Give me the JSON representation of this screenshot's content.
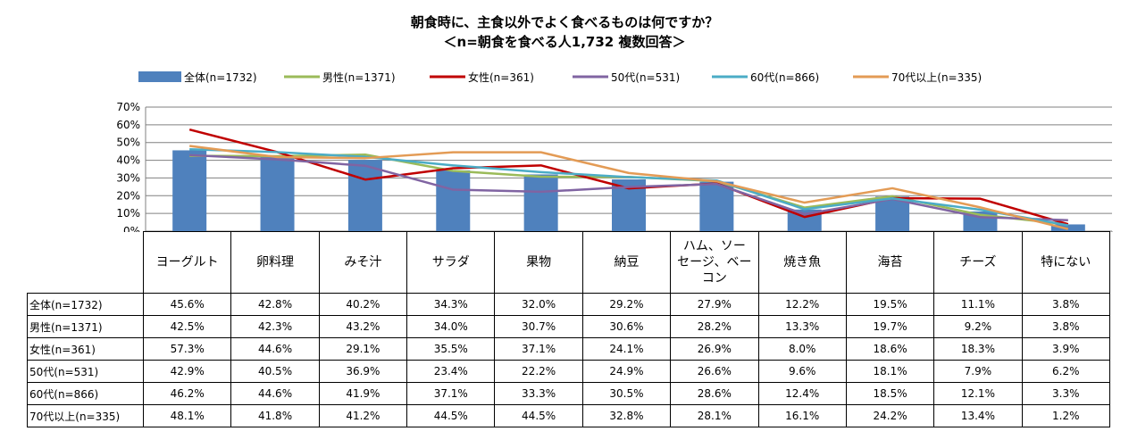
{
  "title": "朝食時に、主食以外でよく食べるものは何ですか？",
  "subtitle": "＜n=朝食を食べる人1,732  複数回答＞",
  "colors": {
    "全体": "#4F81BD",
    "男性": "#9BBB59",
    "女性": "#C00000",
    "50代": "#8064A2",
    "60代": "#4BACC6",
    "70代以上": "#E39B55",
    "grid": "#808080"
  },
  "chart_data": {
    "type": "bar+line",
    "categories": [
      "ヨーグルト",
      "卵料理",
      "みそ汁",
      "サラダ",
      "果物",
      "納豆",
      "ハム、ソーセージ、ベーコン",
      "焼き魚",
      "海苔",
      "チーズ",
      "特にない"
    ],
    "category_labels": [
      "ヨーグルト",
      "卵料理",
      "みそ汁",
      "サラダ",
      "果物",
      "納豆",
      "ハム、ソー\nセージ、ベー\nコン",
      "焼き魚",
      "海苔",
      "チーズ",
      "特にない"
    ],
    "ylim": [
      0,
      70
    ],
    "yticks": [
      "0%",
      "10%",
      "20%",
      "30%",
      "40%",
      "50%",
      "60%",
      "70%"
    ],
    "grid": true,
    "legend_position": "top",
    "series": [
      {
        "key": "全体",
        "name": "全体(n=1732)",
        "kind": "bar",
        "values": [
          45.6,
          42.8,
          40.2,
          34.3,
          32.0,
          29.2,
          27.9,
          12.2,
          19.5,
          11.1,
          3.8
        ],
        "labels": [
          "45.6%",
          "42.8%",
          "40.2%",
          "34.3%",
          "32.0%",
          "29.2%",
          "27.9%",
          "12.2%",
          "19.5%",
          "11.1%",
          "3.8%"
        ]
      },
      {
        "key": "男性",
        "name": "男性(n=1371)",
        "kind": "line",
        "values": [
          42.5,
          42.3,
          43.2,
          34.0,
          30.7,
          30.6,
          28.2,
          13.3,
          19.7,
          9.2,
          3.8
        ],
        "labels": [
          "42.5%",
          "42.3%",
          "43.2%",
          "34.0%",
          "30.7%",
          "30.6%",
          "28.2%",
          "13.3%",
          "19.7%",
          "9.2%",
          "3.8%"
        ]
      },
      {
        "key": "女性",
        "name": "女性(n=361)",
        "kind": "line",
        "values": [
          57.3,
          44.6,
          29.1,
          35.5,
          37.1,
          24.1,
          26.9,
          8.0,
          18.6,
          18.3,
          3.9
        ],
        "labels": [
          "57.3%",
          "44.6%",
          "29.1%",
          "35.5%",
          "37.1%",
          "24.1%",
          "26.9%",
          "8.0%",
          "18.6%",
          "18.3%",
          "3.9%"
        ]
      },
      {
        "key": "50代",
        "name": "50代(n=531)",
        "kind": "line",
        "values": [
          42.9,
          40.5,
          36.9,
          23.4,
          22.2,
          24.9,
          26.6,
          9.6,
          18.1,
          7.9,
          6.2
        ],
        "labels": [
          "42.9%",
          "40.5%",
          "36.9%",
          "23.4%",
          "22.2%",
          "24.9%",
          "26.6%",
          "9.6%",
          "18.1%",
          "7.9%",
          "6.2%"
        ]
      },
      {
        "key": "60代",
        "name": "60代(n=866)",
        "kind": "line",
        "values": [
          46.2,
          44.6,
          41.9,
          37.1,
          33.3,
          30.5,
          28.6,
          12.4,
          18.5,
          12.1,
          3.3
        ],
        "labels": [
          "46.2%",
          "44.6%",
          "41.9%",
          "37.1%",
          "33.3%",
          "30.5%",
          "28.6%",
          "12.4%",
          "18.5%",
          "12.1%",
          "3.3%"
        ]
      },
      {
        "key": "70代以上",
        "name": "70代以上(n=335)",
        "kind": "line",
        "values": [
          48.1,
          41.8,
          41.2,
          44.5,
          44.5,
          32.8,
          28.1,
          16.1,
          24.2,
          13.4,
          1.2
        ],
        "labels": [
          "48.1%",
          "41.8%",
          "41.2%",
          "44.5%",
          "44.5%",
          "32.8%",
          "28.1%",
          "16.1%",
          "24.2%",
          "13.4%",
          "1.2%"
        ]
      }
    ]
  }
}
